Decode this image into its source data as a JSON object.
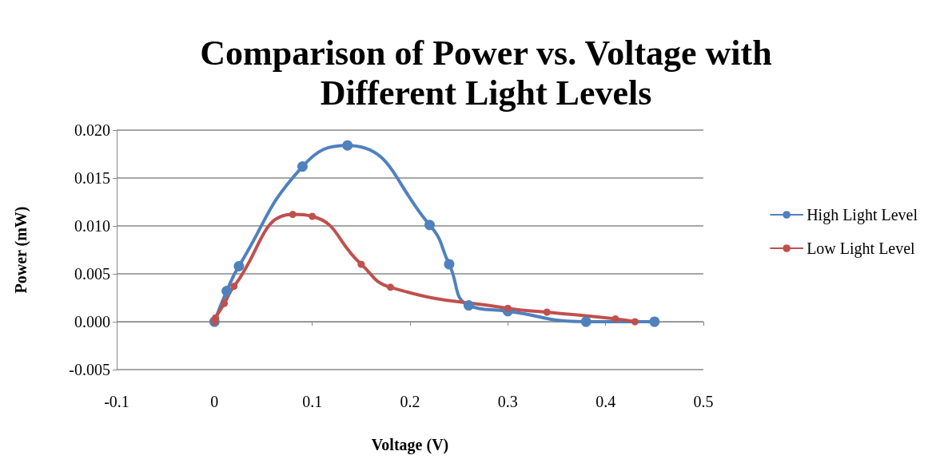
{
  "chart_data": {
    "type": "line",
    "title": "Comparison of Power vs. Voltage with\nDifferent Light Levels",
    "xlabel": "Voltage (V)",
    "ylabel": "Power (mW)",
    "series": [
      {
        "name": "High Light Level",
        "color": "#4f81bd",
        "x": [
          0,
          0.0125,
          0.025,
          0.09,
          0.136,
          0.22,
          0.24,
          0.26,
          0.3,
          0.38,
          0.45
        ],
        "values": [
          0,
          0.0032,
          0.0058,
          0.0162,
          0.0184,
          0.0101,
          0.006,
          0.0017,
          0.0011,
          0,
          0
        ]
      },
      {
        "name": "Low Light Level",
        "color": "#c0504d",
        "x": [
          0,
          0.001,
          0.01,
          0.02,
          0.08,
          0.1,
          0.15,
          0.18,
          0.3,
          0.34,
          0.41,
          0.43
        ],
        "values": [
          0,
          0.0004,
          0.0019,
          0.0037,
          0.0112,
          0.011,
          0.006,
          0.0036,
          0.0014,
          0.001,
          0.0003,
          0
        ]
      }
    ],
    "xlim": [
      -0.1,
      0.5
    ],
    "xticks": [
      -0.1,
      0,
      0.1,
      0.2,
      0.3,
      0.4,
      0.5
    ],
    "ylim": [
      -0.005,
      0.02
    ],
    "yticks": [
      {
        "value": -0.005,
        "label": "-0.005"
      },
      {
        "value": 0,
        "label": "0.000"
      },
      {
        "value": 0.005,
        "label": "0.005"
      },
      {
        "value": 0.01,
        "label": "0.010"
      },
      {
        "value": 0.015,
        "label": "0.015"
      },
      {
        "value": 0.02,
        "label": "0.020"
      }
    ],
    "grid": "y",
    "legend": "right",
    "marker": "circle",
    "line_style": "solid"
  }
}
